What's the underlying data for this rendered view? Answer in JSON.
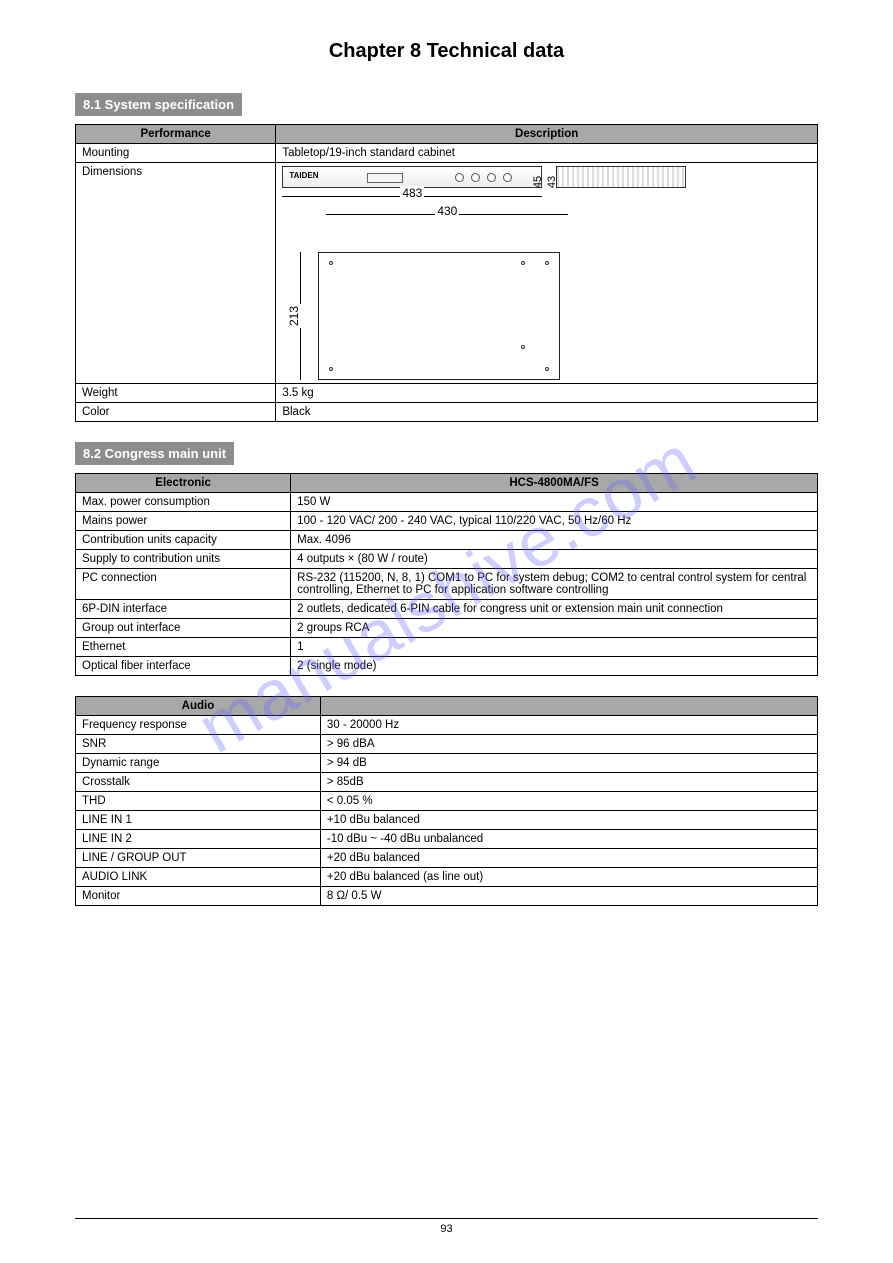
{
  "watermark": "manualshive.com",
  "chapter_title": "Chapter 8 Technical data",
  "section1_title": "8.1 System specification",
  "table1": {
    "headers": [
      "Performance",
      "Description"
    ],
    "rows": [
      {
        "label": "Mounting",
        "value": "Tabletop/19-inch standard cabinet"
      },
      {
        "label": "Dimensions",
        "value": ""
      },
      {
        "label": "Weight",
        "value": "3.5 kg"
      },
      {
        "label": "Color",
        "value": "Black"
      }
    ]
  },
  "diagram": {
    "brand": "TAIDEN",
    "dim_front_w": "483",
    "dim_top_w": "430",
    "dim_top_d": "213",
    "dim_side_h_outer": "45",
    "dim_side_h_inner": "43"
  },
  "section2_title": "8.2 Congress main unit",
  "table2": {
    "headers": [
      "Electronic",
      "HCS-4800MA/FS"
    ],
    "rows": [
      {
        "label": "Max. power consumption",
        "value": "150 W"
      },
      {
        "label": "Mains power",
        "value": "100 - 120 VAC/ 200 - 240 VAC, typical 110/220 VAC, 50 Hz/60 Hz"
      },
      {
        "label": "Contribution units capacity",
        "value": "Max. 4096"
      },
      {
        "label": "Supply to contribution units",
        "value": "4 outputs × (80 W / route)"
      },
      {
        "label": "PC connection",
        "value": "RS-232 (115200, N, 8, 1) COM1 to PC for system debug; COM2 to central control system for central controlling, Ethernet to PC for application software controlling"
      },
      {
        "label": "6P-DIN interface",
        "value": "2 outlets, dedicated 6-PIN cable for congress unit or extension main unit connection"
      },
      {
        "label": "Group out interface",
        "value": "2 groups RCA"
      },
      {
        "label": "Ethernet",
        "value": "1"
      },
      {
        "label": "Optical fiber interface",
        "value": "2 (single mode)"
      }
    ]
  },
  "table3": {
    "headers": [
      "Audio",
      ""
    ],
    "rows": [
      {
        "label": "Frequency response",
        "value": "30 - 20000 Hz"
      },
      {
        "label": "SNR",
        "value": "> 96 dBA"
      },
      {
        "label": "Dynamic range",
        "value": "> 94 dB"
      },
      {
        "label": "Crosstalk",
        "value": "> 85dB"
      },
      {
        "label": "THD",
        "value": "< 0.05 %"
      },
      {
        "label": "LINE IN 1",
        "value": "+10 dBu balanced"
      },
      {
        "label": "LINE IN 2",
        "value": "-10 dBu ~ -40 dBu unbalanced"
      },
      {
        "label": "LINE / GROUP OUT",
        "value": "+20 dBu balanced"
      },
      {
        "label": "AUDIO LINK",
        "value": "+20 dBu balanced (as line out)"
      },
      {
        "label": "Monitor",
        "value": "8 Ω/ 0.5 W"
      }
    ]
  },
  "page_number": "93"
}
